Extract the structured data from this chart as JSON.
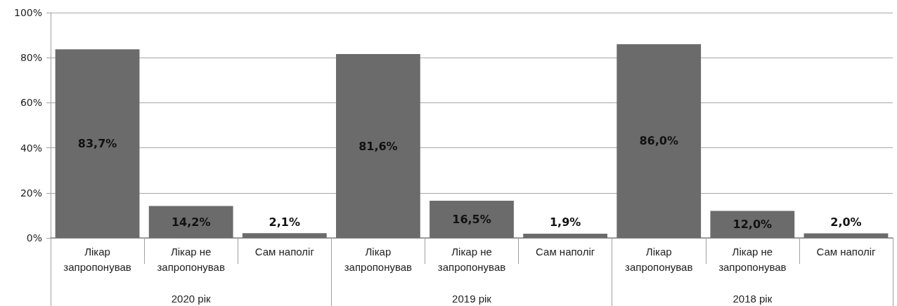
{
  "chart_data": {
    "type": "bar",
    "categories": [
      "Лікар запропонував",
      "Лікар не запропонував",
      "Сам наполіг",
      "Лікар запропонував",
      "Лікар не запропонував",
      "Сам наполіг",
      "Лікар запропонував",
      "Лікар не запропонував",
      "Сам наполіг"
    ],
    "values": [
      83.7,
      14.2,
      2.1,
      81.6,
      16.5,
      1.9,
      86.0,
      12.0,
      2.0
    ],
    "value_labels": [
      "83,7%",
      "14,2%",
      "2,1%",
      "81,6%",
      "16,5%",
      "1,9%",
      "86,0%",
      "12,0%",
      "2,0%"
    ],
    "color": "#6b6b6b",
    "ylim": [
      0,
      100
    ],
    "yticks": [
      {
        "value": 0,
        "label": "0%"
      },
      {
        "value": 20,
        "label": "20%"
      },
      {
        "value": 40,
        "label": "40%"
      },
      {
        "value": 60,
        "label": "60%"
      },
      {
        "value": 80,
        "label": "80%"
      },
      {
        "value": 100,
        "label": "100%"
      }
    ],
    "grid": "y",
    "annotations": [
      "2020 рік",
      "2019 рік",
      "2018 рік"
    ]
  }
}
